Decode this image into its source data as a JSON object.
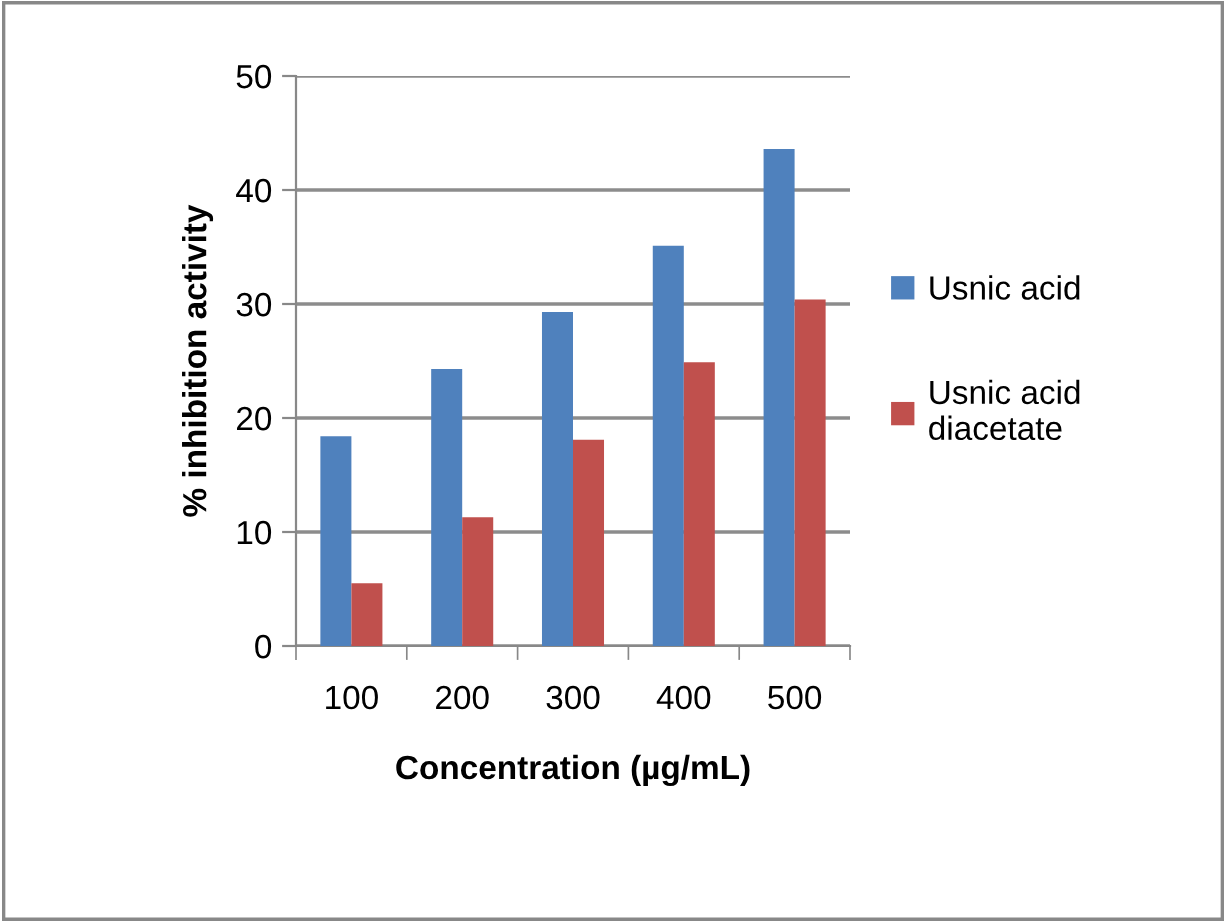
{
  "chart_data": {
    "type": "bar",
    "xlabel": "Concentration (µg/mL)",
    "ylabel": "% inhibition activity",
    "categories": [
      "100",
      "200",
      "300",
      "400",
      "500"
    ],
    "series": [
      {
        "name": "Usnic acid",
        "color": "#4f81bd",
        "values": [
          18.4,
          24.3,
          29.3,
          35.1,
          43.6
        ]
      },
      {
        "name": "Usnic acid\ndiacetate",
        "color": "#c0504d",
        "values": [
          5.5,
          11.3,
          18.1,
          24.9,
          30.4
        ]
      }
    ],
    "ylim": [
      0,
      50
    ],
    "yticks": [
      0,
      10,
      20,
      30,
      40,
      50
    ],
    "grid": "y",
    "legend": "right"
  }
}
